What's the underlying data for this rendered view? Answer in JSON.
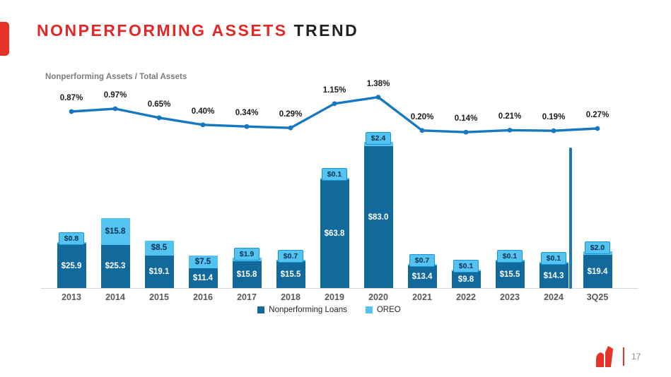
{
  "slide": {
    "title_highlight": "NONPERFORMING ASSETS",
    "title_rest": "TREND",
    "page_number": "17"
  },
  "chart_data": {
    "type": "combo",
    "title": "Nonperforming Assets / Total Assets",
    "categories": [
      "2013",
      "2014",
      "2015",
      "2016",
      "2017",
      "2018",
      "2019",
      "2020",
      "2021",
      "2022",
      "2023",
      "2024",
      "3Q25"
    ],
    "series": [
      {
        "name": "Nonperforming Loans",
        "type": "bar",
        "stack": "assets",
        "color": "#11699c",
        "values": [
          25.9,
          25.3,
          19.1,
          11.4,
          15.8,
          15.5,
          63.8,
          83.0,
          13.4,
          9.8,
          15.5,
          14.3,
          19.4
        ],
        "labels": [
          "$25.9",
          "$25.3",
          "$19.1",
          "$11.4",
          "$15.8",
          "$15.5",
          "$63.8",
          "$83.0",
          "$13.4",
          "$9.8",
          "$15.5",
          "$14.3",
          "$19.4"
        ]
      },
      {
        "name": "OREO",
        "type": "bar",
        "stack": "assets",
        "color": "#53c3f1",
        "values": [
          0.8,
          15.8,
          8.5,
          7.5,
          1.9,
          0.7,
          0.1,
          2.4,
          0.7,
          0.1,
          0.1,
          0.1,
          2.0
        ],
        "labels": [
          "$0.8",
          "$15.8",
          "$8.5",
          "$7.5",
          "$1.9",
          "$0.7",
          "$0.1",
          "$2.4",
          "$0.7",
          "$0.1",
          "$0.1",
          "$0.1",
          "$2.0"
        ],
        "label_style": [
          "callout",
          "inside",
          "inside",
          "inside",
          "callout",
          "callout",
          "callout",
          "callout",
          "callout",
          "callout",
          "callout",
          "callout",
          "callout"
        ]
      },
      {
        "name": "Nonperforming Assets / Total Assets",
        "type": "line",
        "color": "#1678bf",
        "values": [
          0.87,
          0.97,
          0.65,
          0.4,
          0.34,
          0.29,
          1.15,
          1.38,
          0.2,
          0.14,
          0.21,
          0.19,
          0.27
        ],
        "labels": [
          "0.87%",
          "0.97%",
          "0.65%",
          "0.40%",
          "0.34%",
          "0.29%",
          "1.15%",
          "1.38%",
          "0.20%",
          "0.14%",
          "0.21%",
          "0.19%",
          "0.27%"
        ]
      }
    ],
    "legend": [
      {
        "label": "Nonperforming Loans",
        "color": "#11699c"
      },
      {
        "label": "OREO",
        "color": "#53c3f1"
      }
    ],
    "separator_between": [
      "2024",
      "3Q25"
    ],
    "grid": false,
    "y_axis_visible": false
  }
}
